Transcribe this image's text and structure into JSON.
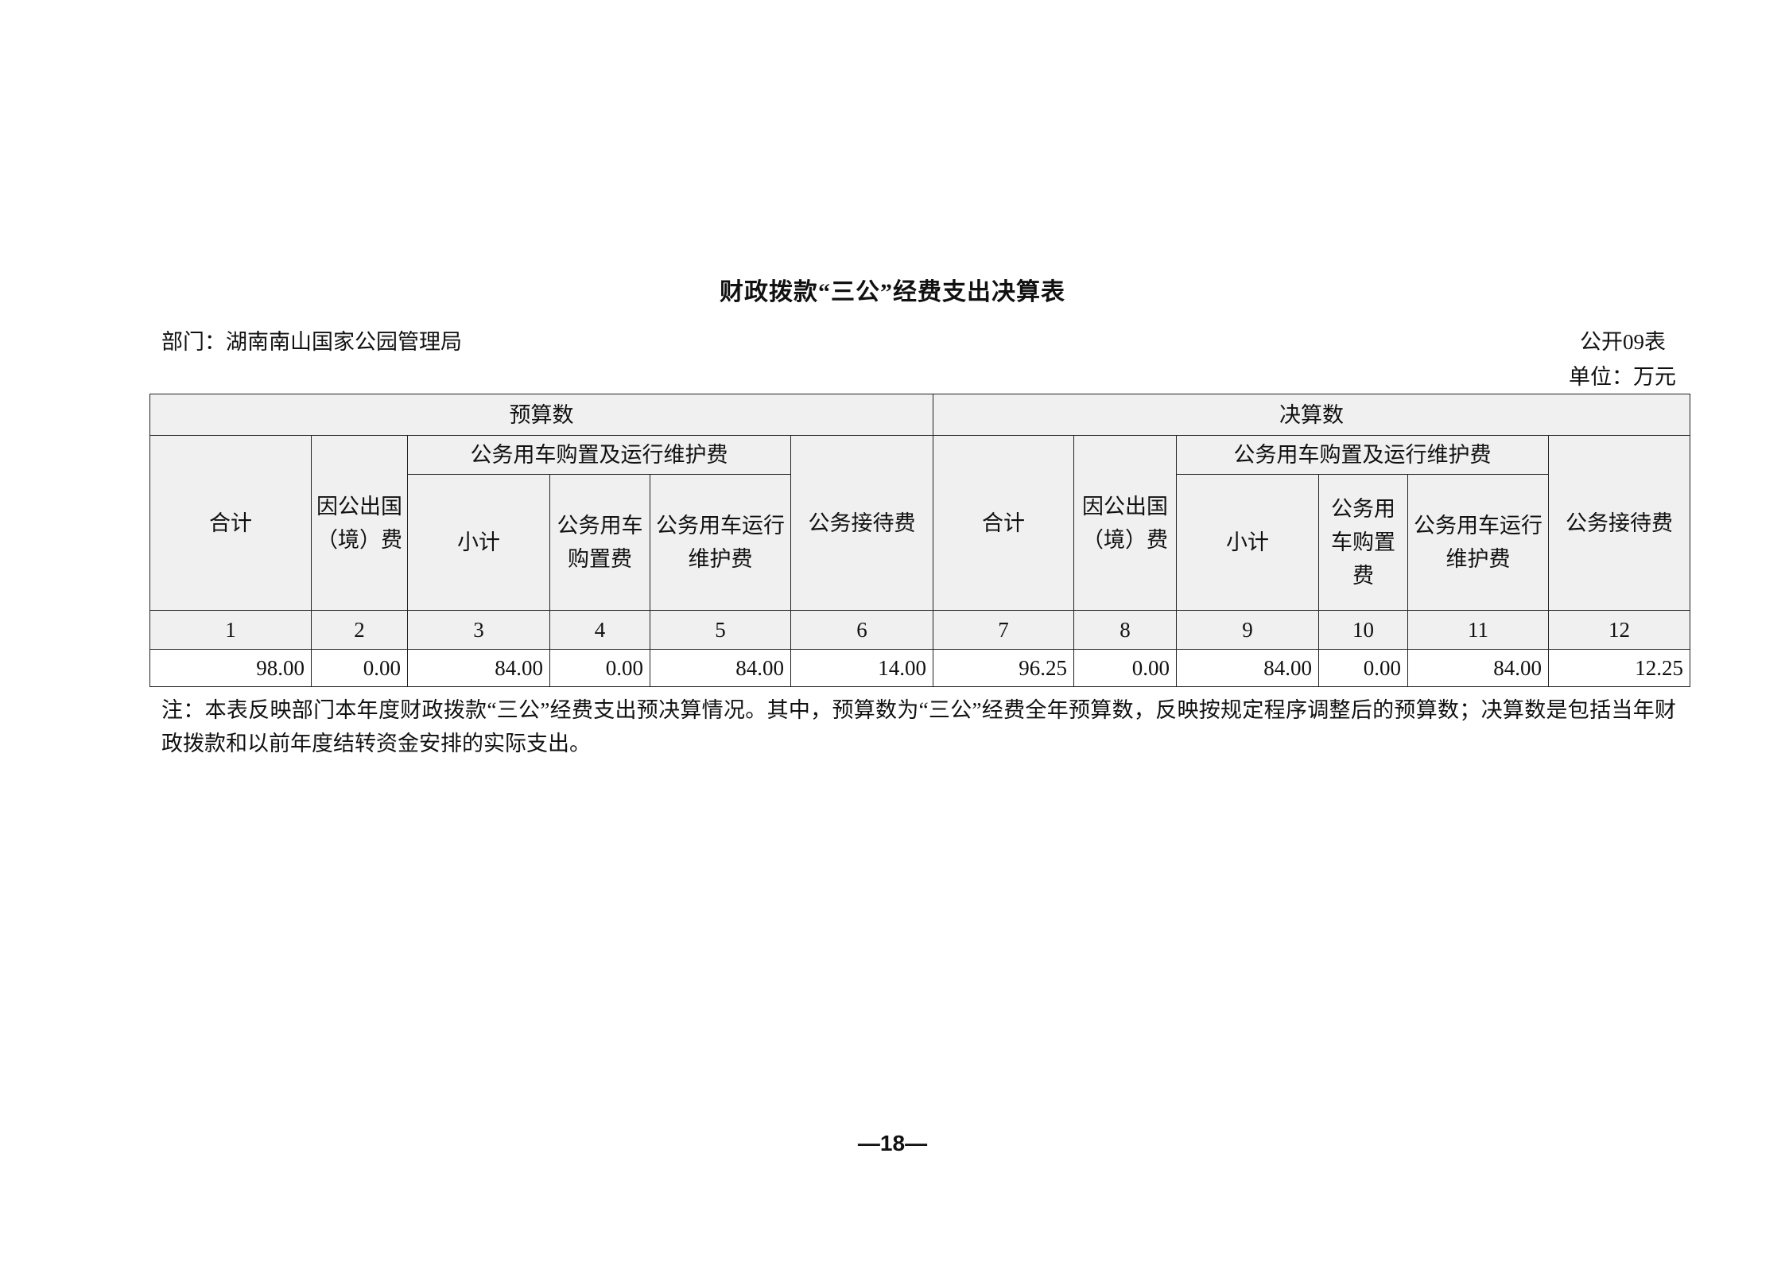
{
  "title": "财政拨款“三公”经费支出决算表",
  "department": "部门：湖南南山国家公园管理局",
  "table_no": "公开09表",
  "unit": "单位：万元",
  "table": {
    "group_budget": "预算数",
    "group_final": "决算数",
    "vehicle_group": "公务用车购置及运行维护费",
    "col_total": "合计",
    "col_abroad": "因公出国（境）费",
    "col_subtotal": "小计",
    "col_vehicle_purchase": "公务用车购置费",
    "col_vehicle_operation": "公务用车运行维护费",
    "col_reception": "公务接待费",
    "column_numbers": [
      "1",
      "2",
      "3",
      "4",
      "5",
      "6",
      "7",
      "8",
      "9",
      "10",
      "11",
      "12"
    ],
    "values": [
      "98.00",
      "0.00",
      "84.00",
      "0.00",
      "84.00",
      "14.00",
      "96.25",
      "0.00",
      "84.00",
      "0.00",
      "84.00",
      "12.25"
    ]
  },
  "note": "注：本表反映部门本年度财政拨款“三公”经费支出预决算情况。其中，预算数为“三公”经费全年预算数，反映按规定程序调整后的预算数；决算数是包括当年财政拨款和以前年度结转资金安排的实际支出。",
  "page_number": "—18—"
}
